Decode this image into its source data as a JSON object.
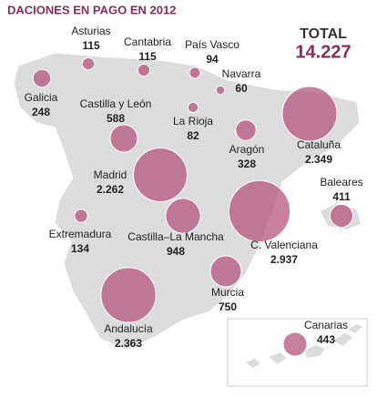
{
  "title": "DACIONES EN PAGO EN 2012",
  "total": {
    "label": "TOTAL",
    "value": 14227,
    "value_label": "14.227"
  },
  "bubble_color": "#b5567f",
  "regions": {
    "names": [
      "Galicia",
      "Asturias",
      "Cantabria",
      "País Vasco",
      "Navarra",
      "Castilla y León",
      "La Rioja",
      "Aragón",
      "Cataluña",
      "Madrid",
      "Baleares",
      "Extremadura",
      "Castilla–La Mancha",
      "C. Valenciana",
      "Murcia",
      "Andalucía",
      "Canarias"
    ],
    "values": [
      248,
      115,
      115,
      94,
      60,
      588,
      82,
      328,
      2349,
      2262,
      411,
      134,
      948,
      2937,
      750,
      2363,
      443
    ],
    "value_labels": [
      "248",
      "115",
      "115",
      "94",
      "60",
      "588",
      "82",
      "328",
      "2.349",
      "2.262",
      "411",
      "134",
      "948",
      "2.937",
      "750",
      "2.363",
      "443"
    ]
  }
}
